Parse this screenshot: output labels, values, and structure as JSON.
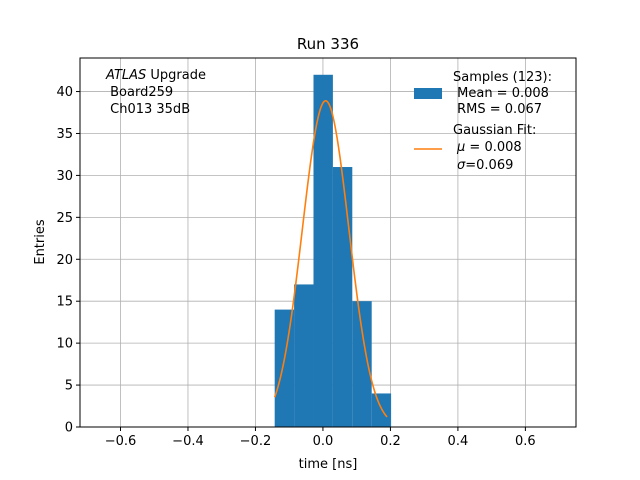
{
  "chart_data": {
    "type": "bar",
    "title": "Run 336",
    "xlabel": "time [ns]",
    "ylabel": "Entries",
    "xlim": [
      -0.72,
      0.75
    ],
    "ylim": [
      0,
      44
    ],
    "xticks": [
      -0.6,
      -0.4,
      -0.2,
      0.0,
      0.2,
      0.4,
      0.6
    ],
    "xtick_labels": [
      "−0.6",
      "−0.4",
      "−0.2",
      "0.0",
      "0.2",
      "0.4",
      "0.6"
    ],
    "yticks": [
      0,
      5,
      10,
      15,
      20,
      25,
      30,
      35,
      40
    ],
    "yticklabels": [
      "0",
      "5",
      "10",
      "15",
      "20",
      "25",
      "30",
      "35",
      "40"
    ],
    "grid": true,
    "bin_edges": [
      -0.143,
      -0.0855,
      -0.028,
      0.0295,
      0.087,
      0.1445,
      0.202
    ],
    "counts": [
      14,
      17,
      42,
      31,
      15,
      4
    ],
    "bar_color": "#1f77b4",
    "fit": {
      "mu": 0.008,
      "sigma": 0.069,
      "amplitude": 38.9,
      "x_range": [
        -0.143,
        0.19
      ],
      "color": "#ff7f0e"
    },
    "annotation": {
      "line1_italic": "ATLAS",
      "line1_rest": " Upgrade",
      "line2": " Board259",
      "line3": " Ch013 35dB"
    },
    "legend": {
      "position": "top-right",
      "samples_lines": [
        "Samples (123):",
        " Mean = 0.008",
        " RMS = 0.067"
      ],
      "fit_title": "Gaussian Fit:",
      "fit_mu_symbol": "μ",
      "fit_mu_text": " = 0.008",
      "fit_sigma_symbol": "σ",
      "fit_sigma_text": "=0.069"
    }
  }
}
